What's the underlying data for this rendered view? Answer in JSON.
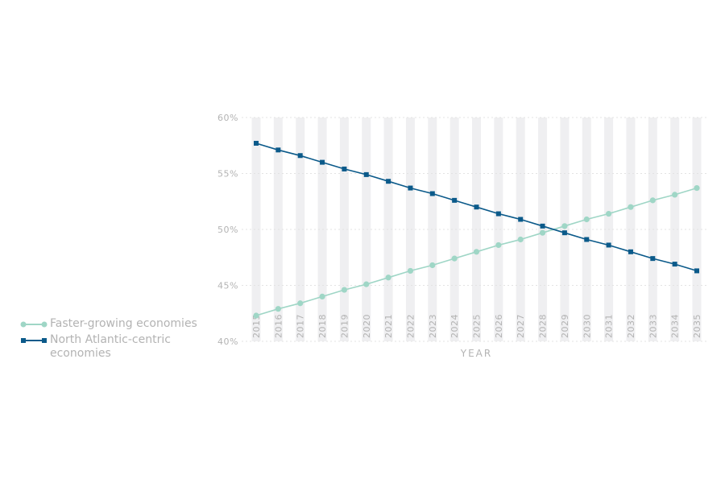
{
  "chart_data": {
    "type": "line",
    "x": [
      "2015",
      "2016",
      "2017",
      "2018",
      "2019",
      "2020",
      "2021",
      "2022",
      "2023",
      "2024",
      "2025",
      "2026",
      "2027",
      "2028",
      "2029",
      "2030",
      "2031",
      "2032",
      "2033",
      "2034",
      "2035"
    ],
    "xlabel": "YEAR",
    "ylabel": "",
    "ylim": [
      40,
      60
    ],
    "yticks": [
      40,
      45,
      50,
      55,
      60
    ],
    "ytick_labels": [
      "40%",
      "45%",
      "50%",
      "55%",
      "60%"
    ],
    "grid": true,
    "legend": "left",
    "series": [
      {
        "name": "Faster-growing economies",
        "color": "#9fd6c6",
        "marker": "circle",
        "values": [
          42.3,
          42.9,
          43.4,
          44.0,
          44.6,
          45.1,
          45.7,
          46.3,
          46.8,
          47.4,
          48.0,
          48.6,
          49.1,
          49.7,
          50.3,
          50.9,
          51.4,
          52.0,
          52.6,
          53.1,
          53.7
        ]
      },
      {
        "name": "North Atlantic-centric economies",
        "color": "#0b5a8a",
        "marker": "square",
        "values": [
          57.7,
          57.1,
          56.6,
          56.0,
          55.4,
          54.9,
          54.3,
          53.7,
          53.2,
          52.6,
          52.0,
          51.4,
          50.9,
          50.3,
          49.7,
          49.1,
          48.6,
          48.0,
          47.4,
          46.9,
          46.3
        ]
      }
    ]
  }
}
